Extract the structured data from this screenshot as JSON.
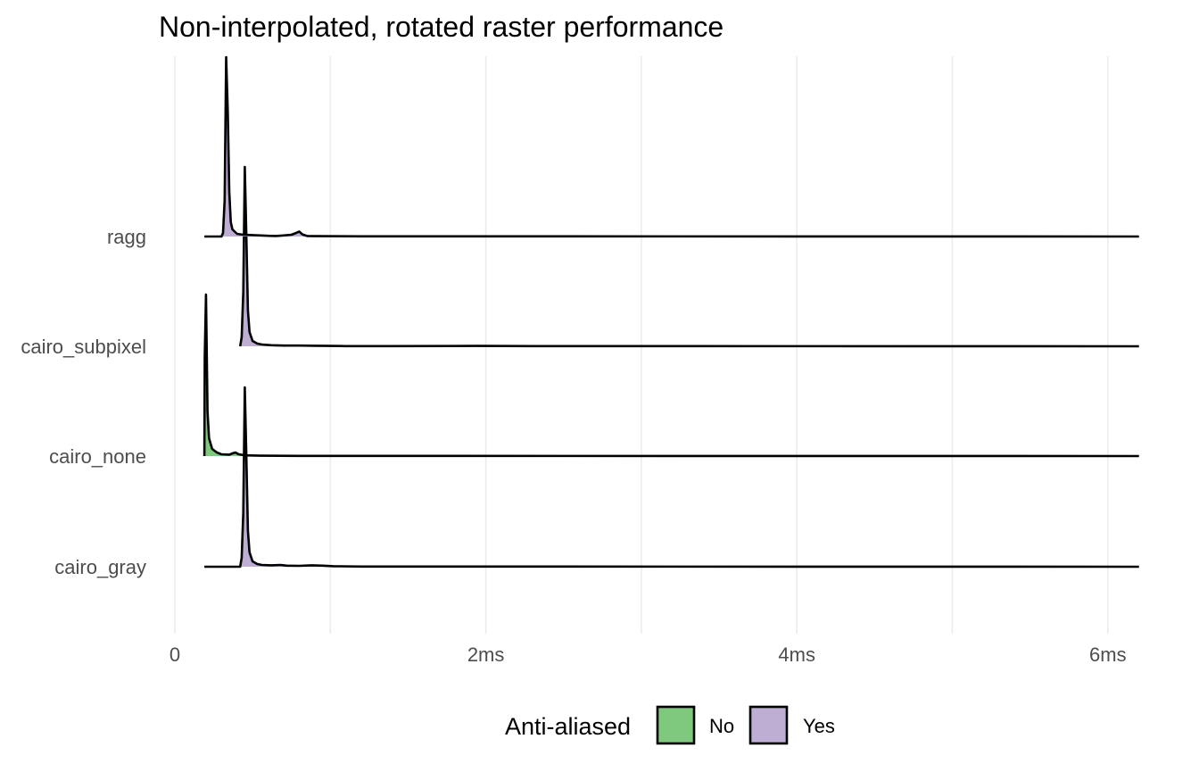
{
  "chart_data": {
    "type": "ridgeline",
    "title": "Non-interpolated, rotated raster performance",
    "xlabel": "",
    "ylabel": "",
    "x_ticks": [
      {
        "value": 0,
        "label": "0"
      },
      {
        "value": 2,
        "label": "2ms"
      },
      {
        "value": 4,
        "label": "4ms"
      },
      {
        "value": 6,
        "label": "6ms"
      }
    ],
    "xlim": [
      0,
      6.2
    ],
    "grid": true,
    "legend": {
      "title": "Anti-aliased",
      "position": "bottom",
      "entries": [
        {
          "label": "No",
          "color": "#7fc97f"
        },
        {
          "label": "Yes",
          "color": "#beaed4"
        }
      ]
    },
    "series": [
      {
        "name": "ragg",
        "anti_aliased": "Yes",
        "range_max": 6.2,
        "points": [
          [
            0.19,
            0
          ],
          [
            0.3,
            0
          ],
          [
            0.31,
            0.02
          ],
          [
            0.32,
            0.2
          ],
          [
            0.33,
            1.0
          ],
          [
            0.34,
            0.7
          ],
          [
            0.35,
            0.25
          ],
          [
            0.36,
            0.08
          ],
          [
            0.37,
            0.04
          ],
          [
            0.4,
            0.015
          ],
          [
            0.44,
            0.01
          ],
          [
            0.5,
            0.008
          ],
          [
            0.6,
            0.004
          ],
          [
            0.65,
            0.003
          ],
          [
            0.7,
            0.006
          ],
          [
            0.75,
            0.01
          ],
          [
            0.78,
            0.02
          ],
          [
            0.8,
            0.028
          ],
          [
            0.82,
            0.012
          ],
          [
            0.85,
            0.003
          ],
          [
            0.9,
            0.002
          ],
          [
            1.2,
            0.001
          ],
          [
            6.2,
            0
          ]
        ]
      },
      {
        "name": "cairo_subpixel",
        "anti_aliased": "Yes",
        "range_max": 6.2,
        "points": [
          [
            0.42,
            0
          ],
          [
            0.43,
            0.05
          ],
          [
            0.44,
            0.3
          ],
          [
            0.45,
            1.0
          ],
          [
            0.46,
            0.6
          ],
          [
            0.47,
            0.2
          ],
          [
            0.48,
            0.08
          ],
          [
            0.5,
            0.03
          ],
          [
            0.53,
            0.015
          ],
          [
            0.56,
            0.01
          ],
          [
            0.62,
            0.006
          ],
          [
            0.7,
            0.004
          ],
          [
            0.8,
            0.004
          ],
          [
            0.9,
            0.003
          ],
          [
            1.0,
            0.002
          ],
          [
            1.1,
            0.001
          ],
          [
            1.4,
            0.001
          ],
          [
            1.94,
            0.002
          ],
          [
            2.3,
            0.001
          ],
          [
            6.2,
            0
          ]
        ]
      },
      {
        "name": "cairo_none",
        "anti_aliased": "No",
        "range_max": 6.2,
        "points": [
          [
            0.19,
            0
          ],
          [
            0.192,
            0.55
          ],
          [
            0.2,
            0.9
          ],
          [
            0.205,
            0.6
          ],
          [
            0.21,
            0.25
          ],
          [
            0.22,
            0.1
          ],
          [
            0.24,
            0.04
          ],
          [
            0.27,
            0.02
          ],
          [
            0.3,
            0.01
          ],
          [
            0.35,
            0.008
          ],
          [
            0.37,
            0.015
          ],
          [
            0.39,
            0.02
          ],
          [
            0.41,
            0.01
          ],
          [
            0.45,
            0.004
          ],
          [
            0.55,
            0.002
          ],
          [
            0.8,
            0.001
          ],
          [
            6.2,
            0
          ]
        ]
      },
      {
        "name": "cairo_gray",
        "anti_aliased": "Yes",
        "range_max": 6.2,
        "points": [
          [
            0.19,
            0
          ],
          [
            0.42,
            0
          ],
          [
            0.43,
            0.05
          ],
          [
            0.44,
            0.3
          ],
          [
            0.45,
            1.0
          ],
          [
            0.46,
            0.6
          ],
          [
            0.47,
            0.2
          ],
          [
            0.48,
            0.08
          ],
          [
            0.5,
            0.03
          ],
          [
            0.53,
            0.015
          ],
          [
            0.56,
            0.01
          ],
          [
            0.62,
            0.008
          ],
          [
            0.68,
            0.01
          ],
          [
            0.72,
            0.006
          ],
          [
            0.8,
            0.005
          ],
          [
            0.88,
            0.008
          ],
          [
            0.95,
            0.006
          ],
          [
            1.02,
            0.003
          ],
          [
            1.2,
            0.001
          ],
          [
            6.2,
            0
          ]
        ]
      }
    ]
  }
}
